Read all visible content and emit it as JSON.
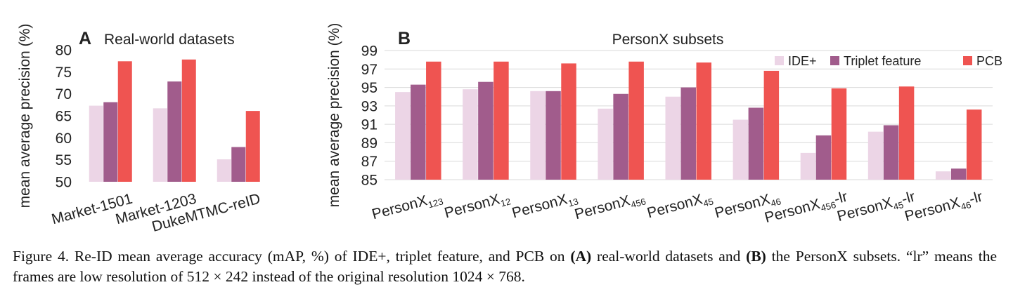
{
  "chart_data": [
    {
      "type": "bar",
      "panel_letter": "A",
      "title": "Real-world datasets",
      "ylabel": "mean average precision (%)",
      "ylim": [
        50,
        80
      ],
      "yticks": [
        50,
        55,
        60,
        65,
        70,
        75,
        80
      ],
      "grid": false,
      "categories": [
        "Market-1501",
        "Market-1203",
        "DukeMTMC-reID"
      ],
      "series": [
        {
          "name": "IDE+",
          "color": "#ecd5e6",
          "values": [
            67.3,
            66.7,
            55.1
          ]
        },
        {
          "name": "Triplet feature",
          "color": "#a15c8c",
          "values": [
            68.1,
            72.8,
            57.9
          ]
        },
        {
          "name": "PCB",
          "color": "#ef5451",
          "values": [
            77.4,
            77.8,
            66.1
          ]
        }
      ]
    },
    {
      "type": "bar",
      "panel_letter": "B",
      "title": "PersonX subsets",
      "ylabel": "mean average precision (%)",
      "ylim": [
        85,
        99
      ],
      "yticks": [
        85,
        87,
        89,
        91,
        93,
        95,
        97,
        99
      ],
      "grid": true,
      "legend_position": "top-right",
      "categories": [
        {
          "base": "PersonX",
          "sub": "123",
          "suffix": ""
        },
        {
          "base": "PersonX",
          "sub": "12",
          "suffix": ""
        },
        {
          "base": "PersonX",
          "sub": "13",
          "suffix": ""
        },
        {
          "base": "PersonX",
          "sub": "456",
          "suffix": ""
        },
        {
          "base": "PersonX",
          "sub": "45",
          "suffix": ""
        },
        {
          "base": "PersonX",
          "sub": "46",
          "suffix": ""
        },
        {
          "base": "PersonX",
          "sub": "456",
          "suffix": "-lr"
        },
        {
          "base": "PersonX",
          "sub": "45",
          "suffix": "-lr"
        },
        {
          "base": "PersonX",
          "sub": "46",
          "suffix": "-lr"
        }
      ],
      "series": [
        {
          "name": "IDE+",
          "color": "#ecd5e6",
          "values": [
            94.5,
            94.8,
            94.6,
            92.7,
            94.0,
            91.5,
            87.9,
            90.2,
            85.9
          ]
        },
        {
          "name": "Triplet feature",
          "color": "#a15c8c",
          "values": [
            95.3,
            95.6,
            94.6,
            94.3,
            95.0,
            92.8,
            89.8,
            90.9,
            86.2
          ]
        },
        {
          "name": "PCB",
          "color": "#ef5451",
          "values": [
            97.8,
            97.8,
            97.6,
            97.8,
            97.7,
            96.8,
            94.9,
            95.1,
            92.6
          ]
        }
      ]
    }
  ],
  "caption": {
    "prefix": "Figure 4. Re-ID mean average accuracy (mAP, %) of IDE+, triplet feature, and PCB on ",
    "bold_a": "(A)",
    "mid": " real-world datasets and ",
    "bold_b": "(B)",
    "rest": " the PersonX subsets. “lr” means the frames are low resolution of 512 × 242 instead of the original resolution 1024 × 768."
  }
}
